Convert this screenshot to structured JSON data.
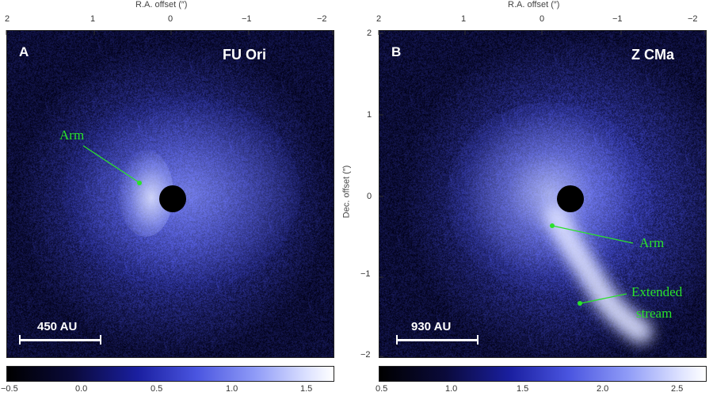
{
  "panelA": {
    "letter": "A",
    "name": "FU Ori",
    "ra_title": "R.A. offset (″)",
    "ra_ticks": [
      "2",
      "1",
      "0",
      "−1",
      "−2"
    ],
    "arm_label": "Arm",
    "scale_label": "450 AU",
    "colorbar_ticks": [
      "−0.5",
      "0.0",
      "0.5",
      "1.0",
      "1.5"
    ]
  },
  "panelB": {
    "letter": "B",
    "name": "Z CMa",
    "ra_title": "R.A. offset (″)",
    "ra_ticks": [
      "2",
      "1",
      "0",
      "−1",
      "−2"
    ],
    "dec_title": "Dec. offset (″)",
    "dec_ticks": [
      "2",
      "1",
      "0",
      "−1",
      "−2"
    ],
    "arm_label": "Arm",
    "stream_label_line1": "Extended",
    "stream_label_line2": "stream",
    "scale_label": "930 AU",
    "colorbar_ticks": [
      "0.5",
      "1.0",
      "1.5",
      "2.0",
      "2.5"
    ]
  },
  "colors": {
    "background": "#000014",
    "emission": "#9da8ff",
    "annotation": "#29e12b"
  }
}
